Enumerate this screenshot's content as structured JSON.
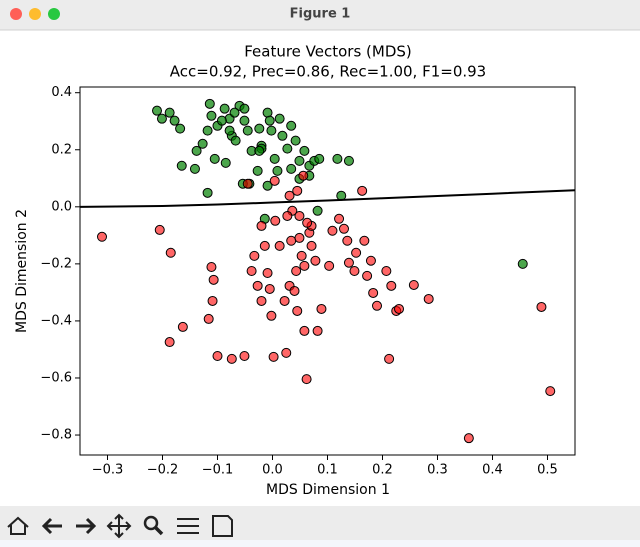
{
  "window": {
    "title": "Figure 1"
  },
  "chart_data": {
    "type": "scatter",
    "title": "Feature Vectors (MDS)",
    "subtitle": "Acc=0.92, Prec=0.86, Rec=1.00, F1=0.93",
    "xlabel": "MDS Dimension 1",
    "ylabel": "MDS Dimension 2",
    "xlim": [
      -0.35,
      0.55
    ],
    "ylim": [
      -0.87,
      0.42
    ],
    "grid": false,
    "xticks": [
      {
        "value": -0.3,
        "label": "−0.3"
      },
      {
        "value": -0.2,
        "label": "−0.2"
      },
      {
        "value": -0.1,
        "label": "−0.1"
      },
      {
        "value": 0,
        "label": "0.0"
      },
      0.1,
      0.2,
      0.3,
      0.4,
      0.5
    ],
    "yticks": [
      {
        "value": -0.8,
        "label": "−0.8"
      },
      {
        "value": -0.6,
        "label": "−0.6"
      },
      {
        "value": -0.4,
        "label": "−0.4"
      },
      {
        "value": -0.2,
        "label": "−0.2"
      },
      {
        "value": 0,
        "label": "0.0"
      },
      0.2,
      0.4
    ],
    "series": [
      {
        "color": "#008000",
        "alpha": 0.7,
        "edgecolor": "#000000",
        "x": [
          -0.21,
          -0.201,
          -0.187,
          -0.178,
          -0.168,
          -0.165,
          -0.141,
          -0.118,
          -0.138,
          -0.127,
          -0.114,
          -0.111,
          -0.118,
          -0.1,
          -0.087,
          -0.078,
          -0.074,
          -0.067,
          -0.06,
          -0.051,
          -0.045,
          -0.038,
          -0.024,
          -0.02,
          -0.009,
          -0.002,
          0.004,
          0.013,
          0.018,
          0.027,
          0.034,
          0.042,
          0.049,
          0.058,
          0.067,
          0.076,
          0.085,
          0.118,
          0.139,
          0.125,
          -0.02,
          -0.027,
          -0.042,
          -0.054,
          -0.085,
          -0.105,
          -0.078,
          -0.051,
          -0.024,
          -0.009,
          0.009,
          0.034,
          0.049,
          0.067,
          -0.014,
          0.082,
          0.455,
          -0.092,
          -0.069,
          -0.005
        ],
        "y": [
          0.337,
          0.309,
          0.33,
          0.302,
          0.274,
          0.144,
          0.133,
          0.049,
          0.196,
          0.221,
          0.361,
          0.319,
          0.267,
          0.284,
          0.344,
          0.309,
          0.249,
          0.232,
          0.354,
          0.302,
          0.267,
          0.196,
          0.274,
          0.214,
          0.33,
          0.267,
          0.168,
          0.309,
          0.249,
          0.204,
          0.284,
          0.232,
          0.161,
          0.196,
          0.144,
          0.161,
          0.168,
          0.168,
          0.161,
          0.039,
          0.204,
          0.126,
          0.081,
          0.081,
          0.154,
          0.168,
          0.267,
          0.344,
          0.196,
          0.074,
          0.126,
          0.133,
          0.098,
          0.109,
          -0.042,
          -0.014,
          -0.2,
          0.302,
          0.33,
          0.302
        ]
      },
      {
        "color": "#ff0000",
        "alpha": 0.6,
        "edgecolor": "#000000",
        "x": [
          -0.31,
          -0.205,
          -0.185,
          -0.111,
          -0.107,
          -0.109,
          -0.116,
          -0.163,
          -0.187,
          -0.1,
          -0.074,
          -0.051,
          -0.038,
          -0.033,
          -0.014,
          -0.009,
          -0.027,
          -0.02,
          -0.005,
          -0.002,
          0.002,
          0.025,
          0.022,
          0.031,
          0.04,
          0.043,
          0.034,
          0.049,
          0.053,
          0.058,
          0.045,
          0.058,
          0.062,
          0.067,
          0.071,
          0.078,
          0.082,
          0.089,
          0.103,
          0.109,
          0.121,
          0.13,
          0.136,
          0.139,
          0.149,
          0.152,
          0.163,
          0.167,
          0.172,
          0.179,
          0.183,
          0.19,
          0.207,
          0.212,
          0.216,
          0.225,
          0.23,
          0.257,
          0.284,
          0.357,
          0.489,
          0.505,
          0.031,
          0.045,
          0.056,
          0.036,
          0.027,
          0.063,
          -0.02,
          0.004,
          -0.045,
          0.071,
          0.013,
          0.049,
          0.005
        ],
        "y": [
          -0.105,
          -0.081,
          -0.161,
          -0.211,
          -0.256,
          -0.33,
          -0.393,
          -0.421,
          -0.474,
          -0.523,
          -0.533,
          -0.523,
          -0.225,
          -0.172,
          -0.137,
          -0.232,
          -0.277,
          -0.33,
          -0.288,
          -0.382,
          -0.526,
          -0.512,
          -0.33,
          -0.277,
          -0.295,
          -0.225,
          -0.119,
          -0.109,
          -0.172,
          -0.207,
          -0.365,
          -0.435,
          -0.604,
          -0.091,
          -0.067,
          -0.189,
          -0.435,
          -0.358,
          -0.207,
          -0.084,
          -0.042,
          -0.077,
          -0.119,
          -0.196,
          -0.225,
          -0.161,
          0.056,
          -0.119,
          -0.242,
          -0.189,
          -0.302,
          -0.347,
          -0.225,
          -0.533,
          -0.277,
          -0.365,
          -0.358,
          -0.274,
          -0.323,
          -0.811,
          -0.351,
          -0.646,
          0.039,
          0.056,
          0.109,
          -0.014,
          -0.032,
          -0.056,
          -0.067,
          0.091,
          0.081,
          -0.137,
          -0.137,
          -0.032,
          -0.049
        ]
      },
      {
        "type": "line",
        "color": "#000000",
        "x": [
          -0.35,
          -0.2,
          -0.1,
          0,
          0.1,
          0.2,
          0.3,
          0.4,
          0.55
        ],
        "y": [
          0.0,
          0.003,
          0.008,
          0.015,
          0.022,
          0.03,
          0.038,
          0.046,
          0.058
        ]
      }
    ]
  }
}
